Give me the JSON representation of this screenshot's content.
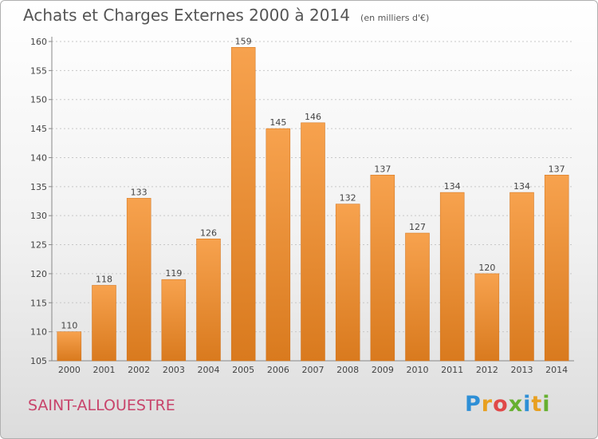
{
  "chart_data": {
    "type": "bar",
    "title": "Achats et Charges Externes 2000 à 2014",
    "subtitle": "(en milliers d'€)",
    "categories": [
      "2000",
      "2001",
      "2002",
      "2003",
      "2004",
      "2005",
      "2006",
      "2007",
      "2008",
      "2009",
      "2010",
      "2011",
      "2012",
      "2013",
      "2014"
    ],
    "values": [
      110,
      118,
      133,
      119,
      126,
      159,
      145,
      146,
      132,
      137,
      127,
      134,
      120,
      134,
      137
    ],
    "ylim": [
      105,
      160
    ],
    "yticks": [
      105,
      110,
      115,
      120,
      125,
      130,
      135,
      140,
      145,
      150,
      155,
      160
    ],
    "grid": "horizontal-dashed",
    "legend": "none",
    "bar_color_top": "#f7a24e",
    "bar_color_bottom": "#d97a1e"
  },
  "commune": "SAINT-ALLOUESTRE",
  "brand": {
    "name": "Proxiti",
    "letters": [
      "P",
      "r",
      "o",
      "x",
      "i",
      "t",
      "i"
    ]
  }
}
